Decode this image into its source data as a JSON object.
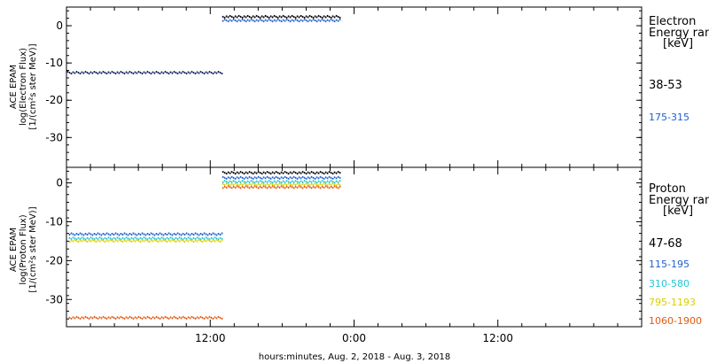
{
  "chart_data": [
    {
      "type": "scatter",
      "panel": "electron",
      "ylabel_lines": [
        "ACE EPAM",
        "log(Electron Flux)",
        "[1/(cm²s ster MeV)]"
      ],
      "ylim": [
        -38,
        5
      ],
      "yticks": [
        0,
        -10,
        -20,
        -30
      ],
      "legend_title_lines": [
        "Electron",
        "Energy ran",
        "[keV]"
      ],
      "series": [
        {
          "name": "38-53",
          "color": "#000000",
          "segments": [
            {
              "x": [
                0.05,
                13.0
              ],
              "y": -12.6,
              "color": "#0a1f5c"
            },
            {
              "x": [
                13.0,
                22.9
              ],
              "y": 2.4
            }
          ]
        },
        {
          "name": "175-315",
          "color": "#1f5fcf",
          "segments": [
            {
              "x": [
                13.0,
                22.9
              ],
              "y": 1.4
            }
          ]
        }
      ]
    },
    {
      "type": "scatter",
      "panel": "proton",
      "ylabel_lines": [
        "ACE EPAM",
        "log(Proton Flux)",
        "[1/(cm²s ster MeV)]"
      ],
      "ylim": [
        -37,
        4
      ],
      "yticks": [
        0,
        -10,
        -20,
        -30
      ],
      "legend_title_lines": [
        "Proton",
        "Energy ran",
        "[keV]"
      ],
      "series": [
        {
          "name": "47-68",
          "color": "#000000",
          "segments": [
            {
              "x": [
                13.0,
                22.9
              ],
              "y": 2.6
            }
          ]
        },
        {
          "name": "115-195",
          "color": "#1f5fcf",
          "segments": [
            {
              "x": [
                0.2,
                13.0
              ],
              "y": -13.2
            },
            {
              "x": [
                13.0,
                22.9
              ],
              "y": 1.3
            }
          ]
        },
        {
          "name": "310-580",
          "color": "#22c6d6",
          "segments": [
            {
              "x": [
                0.2,
                13.0
              ],
              "y": -14.3
            },
            {
              "x": [
                13.0,
                22.9
              ],
              "y": 0.3
            }
          ]
        },
        {
          "name": "795-1193",
          "color": "#d8d000",
          "segments": [
            {
              "x": [
                0.2,
                13.0
              ],
              "y": -14.9
            },
            {
              "x": [
                13.0,
                22.9
              ],
              "y": -0.4
            }
          ]
        },
        {
          "name": "1060-1900",
          "color": "#e05a10",
          "segments": [
            {
              "x": [
                0.2,
                13.0
              ],
              "y": -34.7
            },
            {
              "x": [
                13.0,
                22.9
              ],
              "y": -1.1
            }
          ]
        }
      ]
    }
  ],
  "x_axis": {
    "label": "hours:minutes, Aug.  2, 2018 - Aug.  3, 2018",
    "range_hours": [
      0,
      48
    ],
    "major_ticks": [
      {
        "hour": 12,
        "label": "12:00"
      },
      {
        "hour": 24,
        "label": "0:00"
      },
      {
        "hour": 36,
        "label": "12:00"
      }
    ],
    "minor_tick_step_hours": 2
  }
}
